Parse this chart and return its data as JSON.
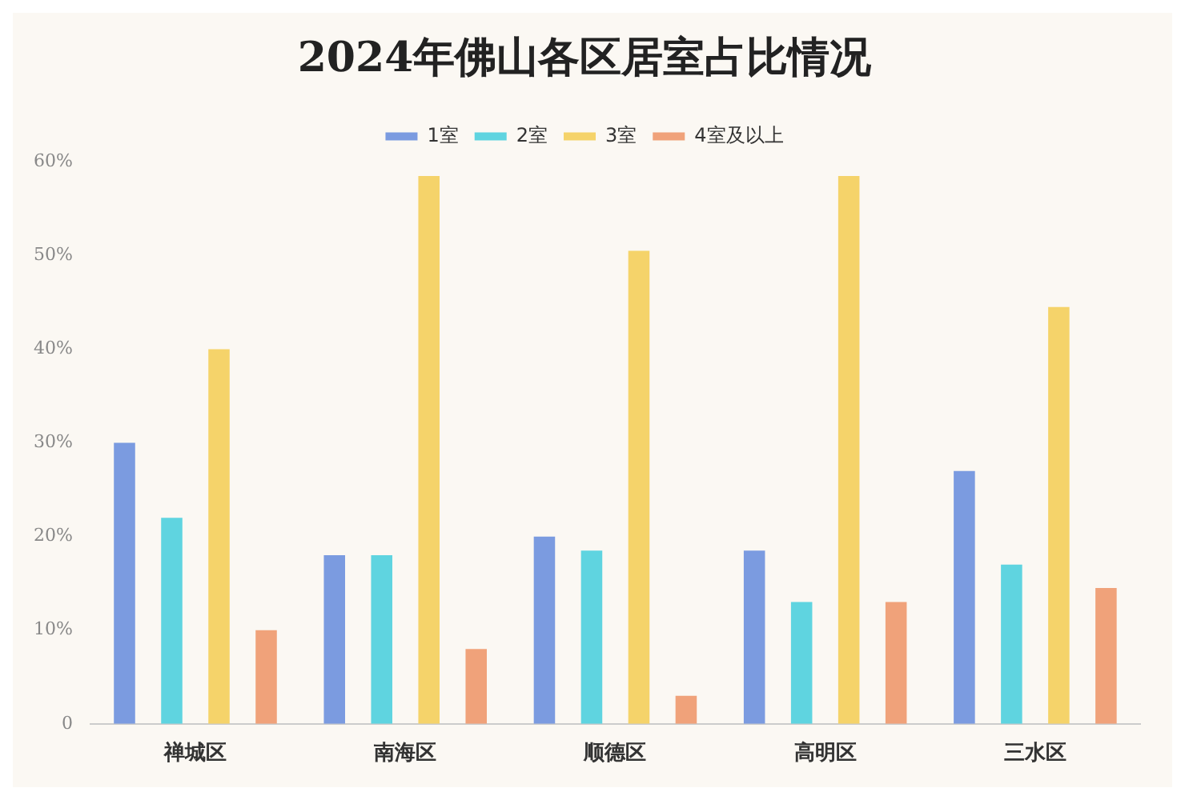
{
  "chart_data": {
    "type": "bar",
    "title": "2024年佛山各区居室占比情况",
    "categories": [
      "禅城区",
      "南海区",
      "顺德区",
      "高明区",
      "三水区"
    ],
    "series": [
      {
        "name": "1室",
        "color": "#7b9be0",
        "values": [
          30,
          18,
          20,
          18.5,
          27
        ]
      },
      {
        "name": "2室",
        "color": "#5fd4e0",
        "values": [
          22,
          18,
          18.5,
          13,
          17
        ]
      },
      {
        "name": "3室",
        "color": "#f5d36a",
        "values": [
          40,
          58.5,
          50.5,
          58.5,
          44.5
        ]
      },
      {
        "name": "4室及以上",
        "color": "#f0a27a",
        "values": [
          10,
          8,
          3,
          13,
          14.5
        ]
      }
    ],
    "ylim": [
      0,
      60
    ],
    "yticks": [
      0,
      {
        "value": 10,
        "label": "10%"
      },
      {
        "value": 20,
        "label": "20%"
      },
      {
        "value": 30,
        "label": "30%"
      },
      {
        "value": 40,
        "label": "40%"
      },
      {
        "value": 50,
        "label": "50%"
      },
      {
        "value": 60,
        "label": "60%"
      }
    ],
    "grid": false,
    "legend": "top"
  }
}
